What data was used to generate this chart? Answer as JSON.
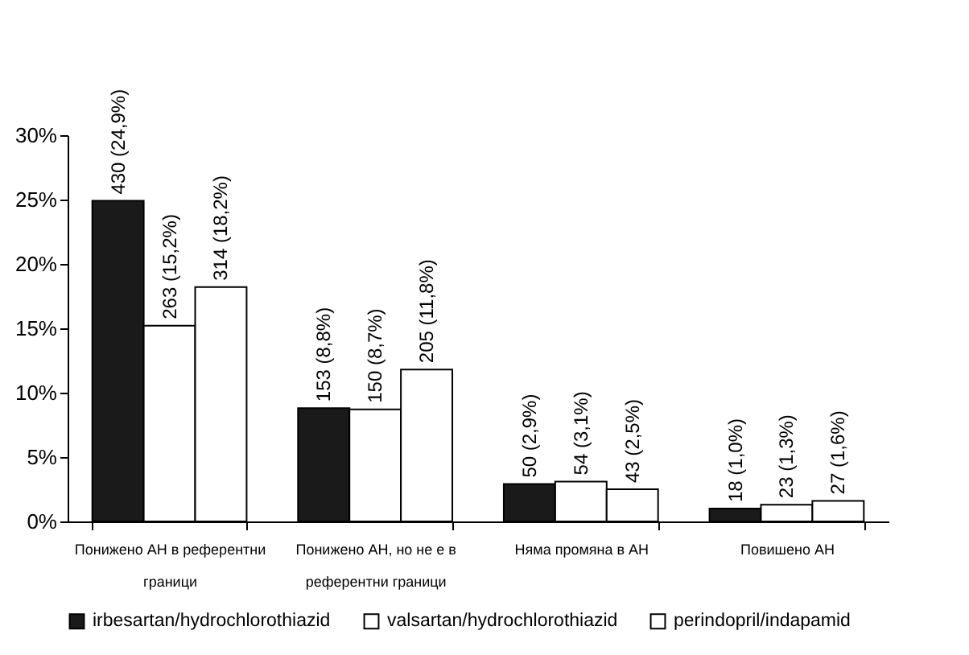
{
  "chart_data": {
    "type": "bar",
    "categories": [
      "Понижено АН в референтни граници",
      "Понижено АН, но не е в референтни граници",
      "Няма промяна в АН",
      "Повишено АН"
    ],
    "series": [
      {
        "name": "irbesartan/hydrochlorothiazid",
        "color": "#1a1a1a",
        "values": [
          24.9,
          8.8,
          2.9,
          1.0
        ],
        "value_labels": [
          "430 (24,9%)",
          "153 (8,8%)",
          "50 (2,9%)",
          "18 (1,0%)"
        ]
      },
      {
        "name": "valsartan/hydrochlorothiazid",
        "color": "#ffffff",
        "values": [
          15.2,
          8.7,
          3.1,
          1.3
        ],
        "value_labels": [
          "263 (15,2%)",
          "150 (8,7%)",
          "54 (3,1%)",
          "23 (1,3%)"
        ]
      },
      {
        "name": "perindopril/indapamid",
        "color": "#ffffff",
        "values": [
          18.2,
          11.8,
          2.5,
          1.6
        ],
        "value_labels": [
          "314 (18,2%)",
          "205 (11,8%)",
          "43 (2,5%)",
          "27 (1,6%)"
        ]
      }
    ],
    "ylim": [
      0,
      30
    ],
    "yticks": [
      {
        "value": 0,
        "label": "0%"
      },
      {
        "value": 5,
        "label": "5%"
      },
      {
        "value": 10,
        "label": "10%"
      },
      {
        "value": 15,
        "label": "15%"
      },
      {
        "value": 20,
        "label": "20%"
      },
      {
        "value": 25,
        "label": "25%"
      },
      {
        "value": 30,
        "label": "30%"
      }
    ],
    "legend": "bottom",
    "grid": false
  }
}
